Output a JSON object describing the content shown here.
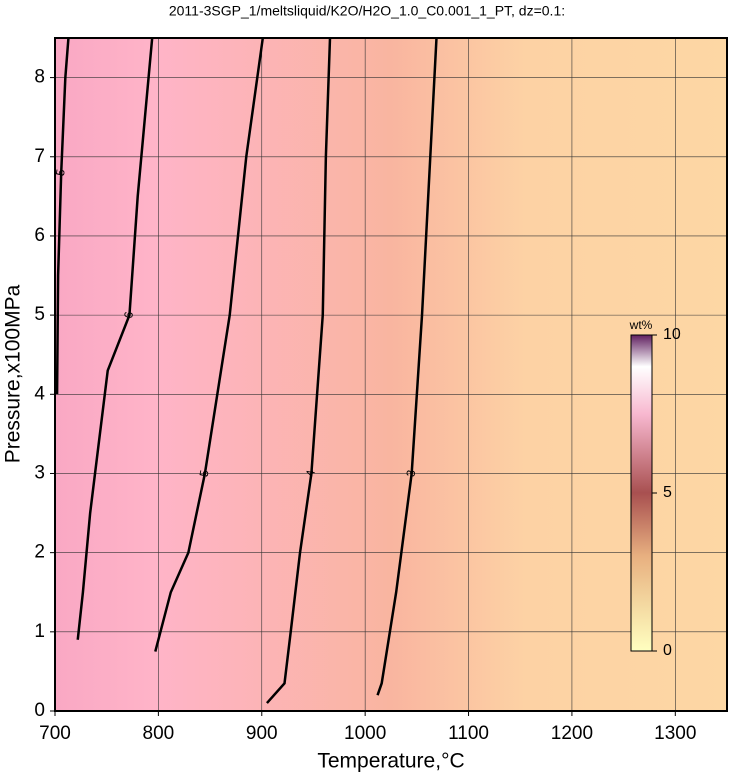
{
  "chart_data": {
    "type": "contour",
    "title": "2011-3SGP_1/meltsliquid/K2O/H2O_1.0_C0.001_1_PT, dz=0.1:",
    "x_label": "Temperature,°C",
    "y_label": "Pressure,x100MPa",
    "xlim": [
      700,
      1350
    ],
    "ylim": [
      0,
      8.5
    ],
    "xticks": [
      700,
      800,
      900,
      1000,
      1100,
      1200,
      1300
    ],
    "yticks": [
      0,
      1,
      2,
      3,
      4,
      5,
      6,
      7,
      8
    ],
    "grid": true,
    "colorbar": {
      "label": "wt%",
      "lim": [
        0,
        10
      ],
      "ticks": [
        0,
        5,
        10
      ]
    },
    "contours": [
      {
        "level": 3,
        "x": [
          1012,
          1016,
          1030,
          1045,
          1055,
          1063,
          1069
        ],
        "y": [
          0.2,
          0.35,
          1.5,
          3,
          5,
          7,
          8.5
        ]
      },
      {
        "level": 4,
        "x": [
          905,
          922,
          928,
          937,
          948,
          959,
          962,
          966
        ],
        "y": [
          0.1,
          0.35,
          1,
          2,
          3,
          5,
          7,
          8.5
        ]
      },
      {
        "level": 5,
        "x": [
          797,
          812,
          829,
          845,
          869,
          885,
          901
        ],
        "y": [
          0.75,
          1.5,
          2,
          3,
          5,
          7,
          8.5
        ]
      },
      {
        "level": 6,
        "x": [
          722,
          727,
          734,
          751,
          772,
          780,
          787,
          794
        ],
        "y": [
          0.9,
          1.5,
          2.5,
          4.3,
          5,
          6.5,
          7.5,
          8.5
        ]
      },
      {
        "level": 5,
        "x": [
          702,
          703,
          706,
          710,
          713
        ],
        "y": [
          4,
          5.5,
          6.8,
          8,
          8.5
        ]
      }
    ]
  }
}
